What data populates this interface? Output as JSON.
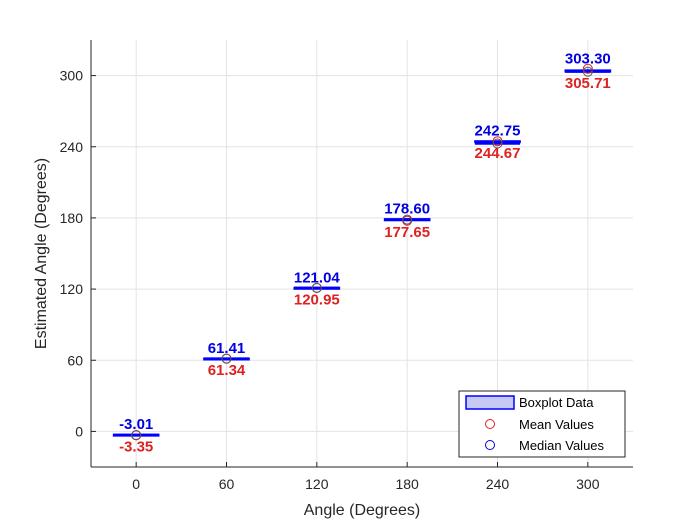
{
  "chart_data": {
    "type": "boxplot",
    "xlabel": "Angle (Degrees)",
    "ylabel": "Estimated Angle (Degrees)",
    "categories": [
      "0",
      "60",
      "120",
      "180",
      "240",
      "300"
    ],
    "x": [
      0,
      60,
      120,
      180,
      240,
      300
    ],
    "xlim": [
      -30,
      330
    ],
    "ylim": [
      -30,
      330
    ],
    "yticks": [
      0,
      60,
      120,
      180,
      240,
      300
    ],
    "grid": true,
    "box_half_width_deg": 15,
    "series": [
      {
        "name": "Boxplot Data",
        "whisker_low": [
          -3.6,
          61.0,
          120.6,
          177.3,
          244.2,
          303.0
        ],
        "q1": [
          -3.5,
          61.2,
          120.8,
          177.8,
          244.4,
          303.2
        ],
        "q3": [
          -2.5,
          61.7,
          121.3,
          179.2,
          244.9,
          304.6
        ],
        "whisker_high": [
          -2.2,
          61.9,
          121.5,
          179.6,
          245.1,
          305.9
        ]
      },
      {
        "name": "Mean Values",
        "values": [
          -3.35,
          61.34,
          120.95,
          177.65,
          244.67,
          305.71
        ]
      },
      {
        "name": "Median Values",
        "values": [
          -3.01,
          61.41,
          121.04,
          178.6,
          242.75,
          303.3
        ]
      }
    ],
    "median_labels": [
      "-3.01",
      "61.41",
      "121.04",
      "178.60",
      "242.75",
      "303.30"
    ],
    "mean_labels": [
      "-3.35",
      "61.34",
      "120.95",
      "177.65",
      "244.67",
      "305.71"
    ],
    "legend": {
      "position": "bottom-right",
      "entries": [
        "Boxplot Data",
        "Mean Values",
        "Median Values"
      ]
    },
    "colors": {
      "box_fill": "#c8c8f5",
      "box_edge": "#0000ff",
      "mean": "#dd2222",
      "median": "#0000e0",
      "grid": "#e3e3e3",
      "axis": "#262626"
    }
  }
}
